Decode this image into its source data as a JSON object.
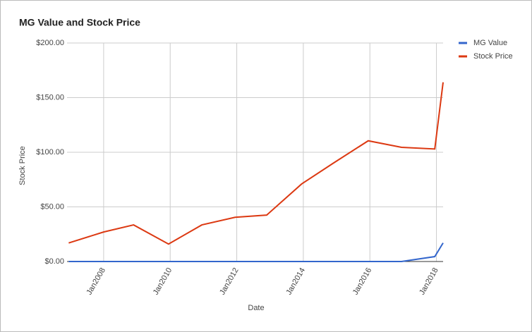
{
  "chart_data": {
    "type": "line",
    "title": "MG Value and Stock Price",
    "x_label": "Date",
    "y_label": "Stock Price",
    "x": [
      2006.95,
      2008,
      2008.9,
      2009.95,
      2010.95,
      2011.95,
      2012.9,
      2013.95,
      2014.9,
      2015.95,
      2016.95,
      2017.95,
      2018.2
    ],
    "series": [
      {
        "name": "MG Value",
        "color": "#3366cc",
        "values": [
          0,
          0,
          0,
          0,
          0,
          0,
          0,
          0,
          0,
          0,
          0,
          4.5,
          17
        ]
      },
      {
        "name": "Stock Price",
        "color": "#dc3912",
        "values": [
          17,
          27,
          33.5,
          16,
          33.5,
          40.5,
          42.5,
          71,
          90,
          110.5,
          104.5,
          103,
          164
        ]
      }
    ],
    "xlim": [
      2006.9,
      2018.2
    ],
    "xticks": [
      {
        "value": 2008,
        "label": "Jan2008"
      },
      {
        "value": 2010,
        "label": "Jan2010"
      },
      {
        "value": 2012,
        "label": "Jan2012"
      },
      {
        "value": 2014,
        "label": "Jan2014"
      },
      {
        "value": 2016,
        "label": "Jan2016"
      },
      {
        "value": 2018,
        "label": "Jan2018"
      }
    ],
    "ylim": [
      0,
      200
    ],
    "yticks": [
      {
        "value": 0,
        "label": "$0.00"
      },
      {
        "value": 50,
        "label": "$50.00"
      },
      {
        "value": 100,
        "label": "$100.00"
      },
      {
        "value": 150,
        "label": "$150.00"
      },
      {
        "value": 200,
        "label": "$200.00"
      }
    ],
    "grid": true,
    "legend": "right"
  }
}
